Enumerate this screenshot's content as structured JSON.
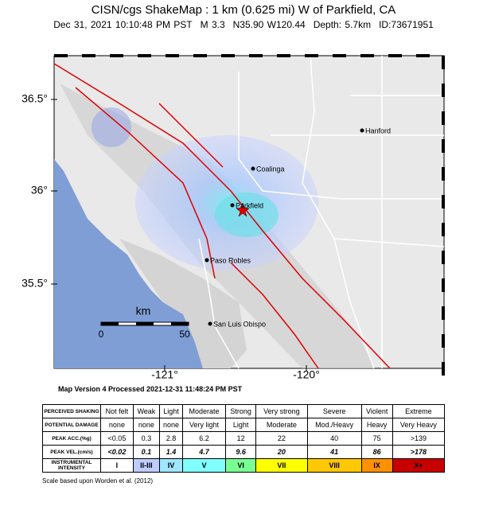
{
  "header": {
    "title": "CISN/cgs ShakeMap : 1 km (0.625 mi) W of Parkfield, CA",
    "subtitle": [
      "Dec 31, 2021 10:10:48 PM PST",
      "M 3.3",
      "N35.90 W120.44",
      "Depth: 5.7km",
      "ID:73671951"
    ]
  },
  "map": {
    "lat_labels": [
      "36.5°",
      "36°",
      "35.5°"
    ],
    "lon_labels": [
      "-121°",
      "-120°"
    ],
    "places": [
      "Hanford",
      "Coalinga",
      "Parkfield",
      "Paso Robles",
      "San Luis Obispo"
    ],
    "scale": {
      "unit": "km",
      "start": "0",
      "end": "50"
    }
  },
  "footer": "Map Version 4 Processed 2021-12-31 11:48:24 PM PST",
  "table": {
    "rows": [
      [
        "PERCEIVED SHAKING",
        "Not felt",
        "Weak",
        "Light",
        "Moderate",
        "Strong",
        "Very strong",
        "Severe",
        "Violent",
        "Extreme"
      ],
      [
        "POTENTIAL DAMAGE",
        "none",
        "none",
        "none",
        "Very light",
        "Light",
        "Moderate",
        "Mod./Heavy",
        "Heavy",
        "Very Heavy"
      ],
      [
        "PEAK ACC.(%g)",
        "<0.05",
        "0.3",
        "2.8",
        "6.2",
        "12",
        "22",
        "40",
        "75",
        ">139"
      ],
      [
        "PEAK VEL.(cm/s)",
        "<0.02",
        "0.1",
        "1.4",
        "4.7",
        "9.6",
        "20",
        "41",
        "86",
        ">178"
      ],
      [
        "INSTRUMENTAL INTENSITY",
        "I",
        "II-III",
        "IV",
        "V",
        "VI",
        "VII",
        "VIII",
        "IX",
        "X+"
      ]
    ],
    "intensity_colors": [
      "#ffffff",
      "#bfccff",
      "#a0e6ff",
      "#80ffff",
      "#7aff93",
      "#ffff00",
      "#ffc800",
      "#ff9100",
      "#c80000"
    ]
  },
  "note": "Scale based upon Worden et al. (2012)"
}
